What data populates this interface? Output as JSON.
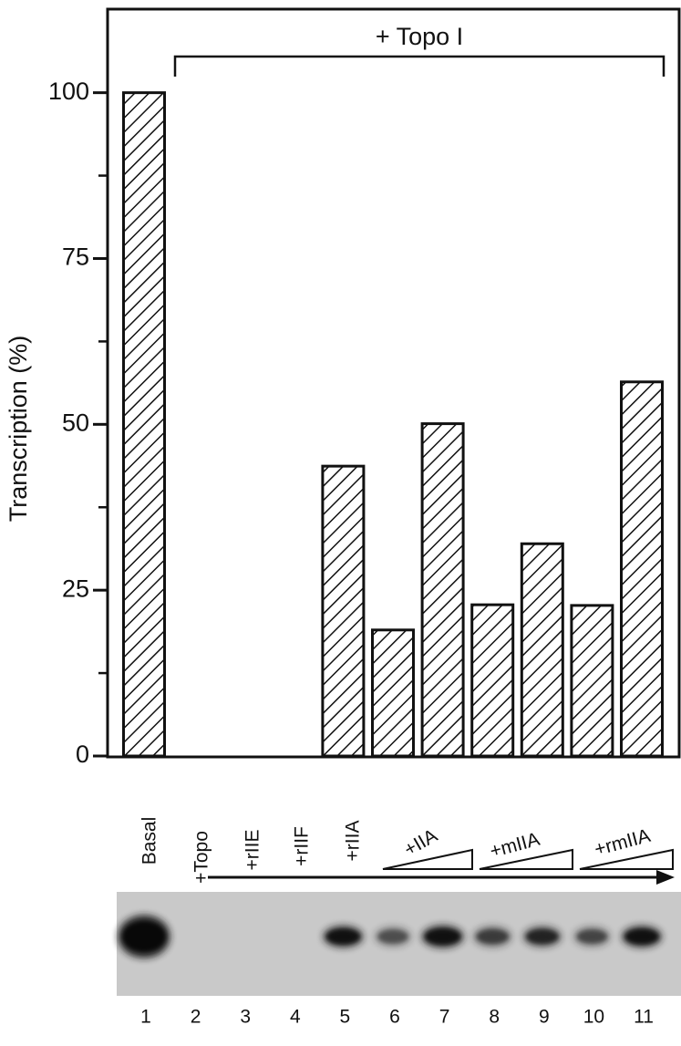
{
  "chart_data": {
    "type": "bar",
    "ylabel": "Transcription (%)",
    "annotation": "+ Topo I",
    "categories": [
      "1",
      "2",
      "3",
      "4",
      "5",
      "6",
      "7",
      "8",
      "9",
      "10",
      "11"
    ],
    "values": [
      100,
      0,
      0,
      0,
      43.7,
      19.0,
      50.1,
      22.8,
      32.0,
      22.7,
      56.4
    ],
    "color": "#111111",
    "ylim": [
      0,
      112.6
    ],
    "yticks": [
      0,
      25,
      50,
      75,
      100
    ],
    "yminorticks": [
      12.5,
      37.5,
      62.5,
      87.5
    ],
    "hatch": true,
    "lane_labels": [
      "Basal",
      "+Topo",
      "+rIIE",
      "+rIIF",
      "+rIIA",
      "+IIA",
      "+mIIA",
      "+rmIIA"
    ]
  }
}
